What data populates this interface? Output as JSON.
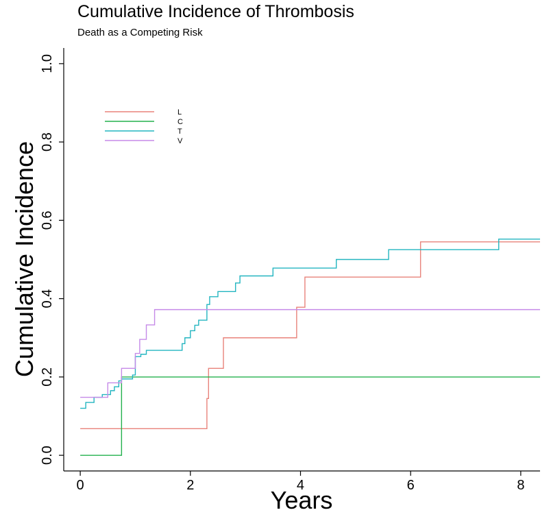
{
  "chart_data": {
    "type": "line",
    "step": true,
    "title": "Cumulative Incidence of Thrombosis",
    "subtitle": "Death as a Competing Risk",
    "xlabel": "Years",
    "ylabel": "Cumulative Incidence",
    "xlim": [
      -0.3,
      8.35
    ],
    "ylim": [
      -0.04,
      1.04
    ],
    "xticks": [
      0,
      2,
      4,
      6,
      8
    ],
    "xtick_labels": [
      "0",
      "2",
      "4",
      "6",
      "8"
    ],
    "yticks": [
      0.0,
      0.2,
      0.4,
      0.6,
      0.8,
      1.0
    ],
    "ytick_labels": [
      "0.0",
      "0.2",
      "0.4",
      "0.6",
      "0.8",
      "1.0"
    ],
    "grid": false,
    "legend_position": "top-left",
    "series": [
      {
        "name": "L",
        "color": "#E8827A",
        "x": [
          0,
          2.3,
          2.33,
          2.6,
          3.93,
          4.08,
          6.18,
          8.35
        ],
        "y": [
          0.068,
          0.145,
          0.222,
          0.3,
          0.378,
          0.455,
          0.545,
          0.545
        ]
      },
      {
        "name": "C",
        "color": "#22B14C",
        "x": [
          0,
          0.75,
          8.35
        ],
        "y": [
          0.0,
          0.2,
          0.2
        ]
      },
      {
        "name": "T",
        "color": "#22B5C0",
        "x": [
          0,
          0.1,
          0.25,
          0.4,
          0.55,
          0.62,
          0.7,
          0.75,
          0.95,
          1.0,
          1.1,
          1.2,
          1.85,
          1.9,
          2.0,
          2.08,
          2.15,
          2.3,
          2.35,
          2.5,
          2.82,
          2.9,
          3.5,
          4.65,
          5.6,
          7.6,
          8.35
        ],
        "y": [
          0.12,
          0.135,
          0.148,
          0.155,
          0.165,
          0.175,
          0.19,
          0.195,
          0.205,
          0.252,
          0.258,
          0.268,
          0.285,
          0.3,
          0.318,
          0.332,
          0.345,
          0.385,
          0.405,
          0.418,
          0.44,
          0.458,
          0.478,
          0.5,
          0.525,
          0.552,
          0.552
        ]
      },
      {
        "name": "V",
        "color": "#C58AE8",
        "x": [
          0,
          0.5,
          0.75,
          1.0,
          1.08,
          1.2,
          1.35,
          8.35
        ],
        "y": [
          0.148,
          0.185,
          0.222,
          0.26,
          0.296,
          0.333,
          0.372,
          0.372
        ]
      }
    ]
  }
}
